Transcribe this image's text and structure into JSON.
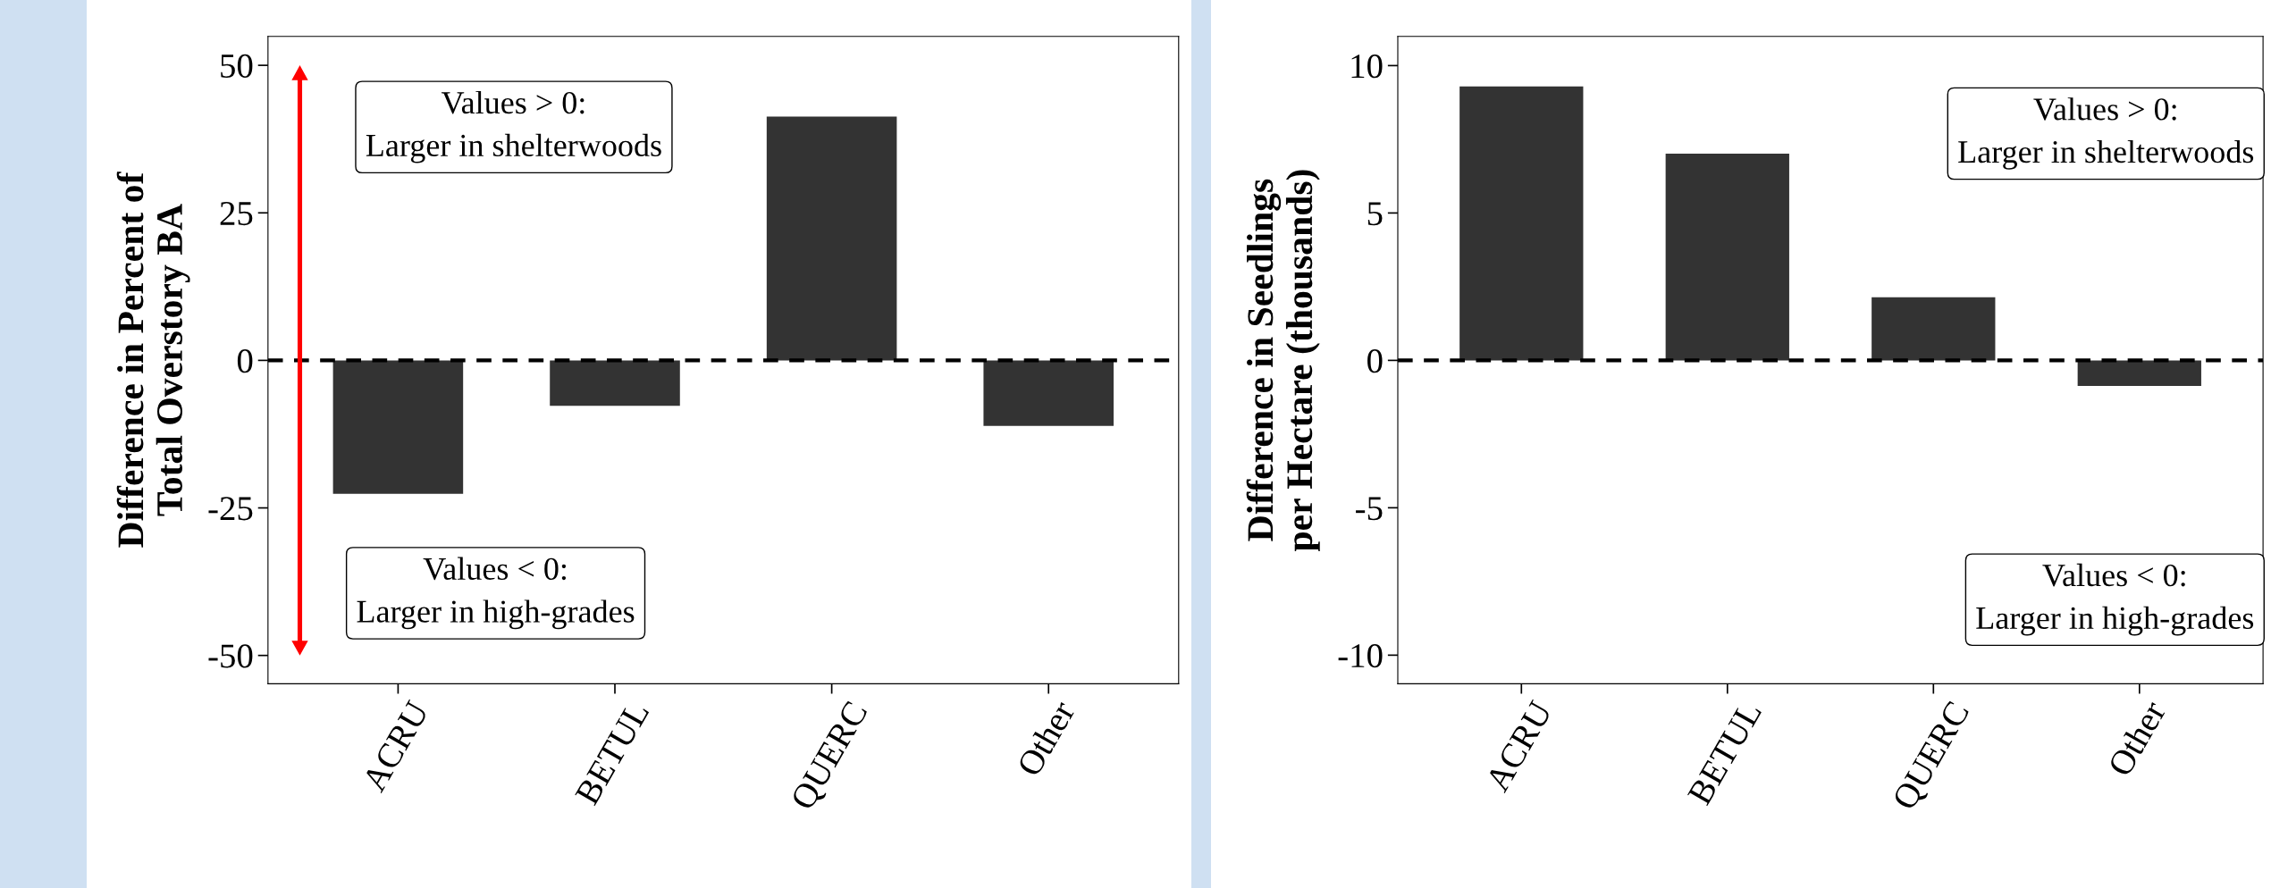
{
  "chart_data": [
    {
      "type": "bar",
      "categories": [
        "ACRU",
        "BETUL",
        "QUERC",
        "Other"
      ],
      "values": [
        -22.6,
        -7.7,
        41.3,
        -11.1
      ],
      "color": "#333333",
      "ylabel": "Difference in Percent of\nTotal Overstory BA",
      "ylim": [
        -54.8,
        54.9
      ],
      "yticks": [
        -50,
        -25,
        0,
        25,
        50
      ],
      "ref_lines": [
        {
          "axis": "y",
          "value": 0,
          "color": "#000000",
          "line_style": "dashed"
        }
      ],
      "annotations": [
        "Values > 0:\nLarger in shelterwoods",
        "Values < 0:\nLarger in high-grades"
      ],
      "grid": false,
      "legend": false
    },
    {
      "type": "bar",
      "categories": [
        "ACRU",
        "BETUL",
        "QUERC",
        "Other"
      ],
      "values": [
        9.29,
        7.01,
        2.14,
        -0.87
      ],
      "color": "#333333",
      "ylabel": "Difference in Seedlings\nper Hectare (thousands)",
      "ylim": [
        -10.97,
        10.99
      ],
      "yticks": [
        -10,
        -5,
        0,
        5,
        10
      ],
      "ref_lines": [
        {
          "axis": "y",
          "value": 0,
          "color": "#000000",
          "line_style": "dashed"
        }
      ],
      "annotations": [
        "Values > 0:\nLarger in shelterwoods",
        "Values < 0:\nLarger in high-grades"
      ],
      "grid": false,
      "legend": false
    }
  ]
}
